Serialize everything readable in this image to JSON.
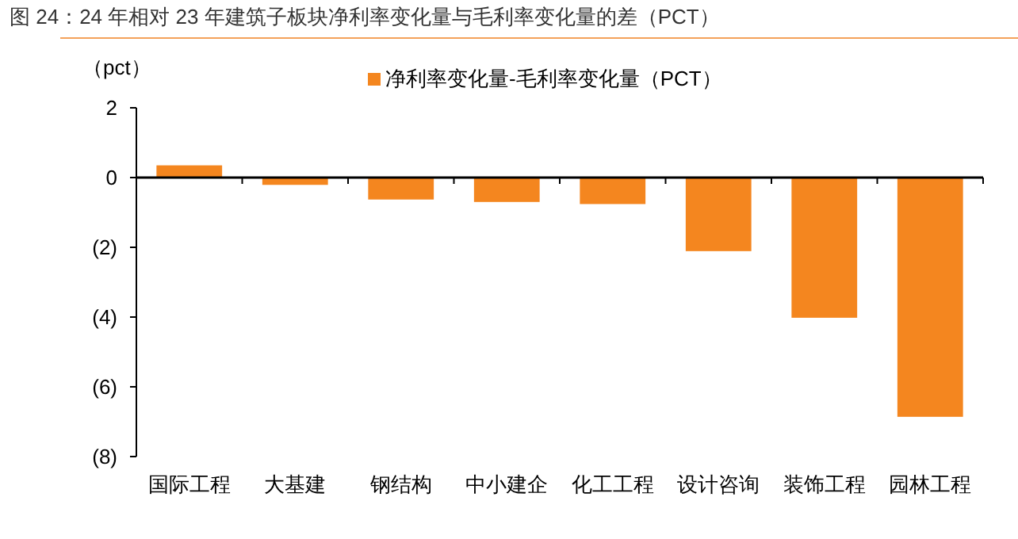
{
  "chart_data": {
    "type": "bar",
    "title": "图 24：24 年相对 23 年建筑子板块净利率变化量与毛利率变化量的差（PCT）",
    "ylabel": "（pct）",
    "categories": [
      "国际工程",
      "大基建",
      "钢结构",
      "中小建企",
      "化工工程",
      "设计咨询",
      "装饰工程",
      "园林工程"
    ],
    "series": [
      {
        "name": "净利率变化量-毛利率变化量（PCT）",
        "color": "#f4861f",
        "values": [
          0.35,
          -0.21,
          -0.63,
          -0.7,
          -0.76,
          -2.11,
          -4.02,
          -6.86
        ]
      }
    ],
    "ylim": [
      -8,
      2
    ],
    "yticks": [
      {
        "value": -8,
        "label": "(8)"
      },
      {
        "value": -6,
        "label": "(6)"
      },
      {
        "value": -4,
        "label": "(4)"
      },
      {
        "value": -2,
        "label": "(2)"
      },
      0,
      2
    ],
    "legend": "top"
  }
}
